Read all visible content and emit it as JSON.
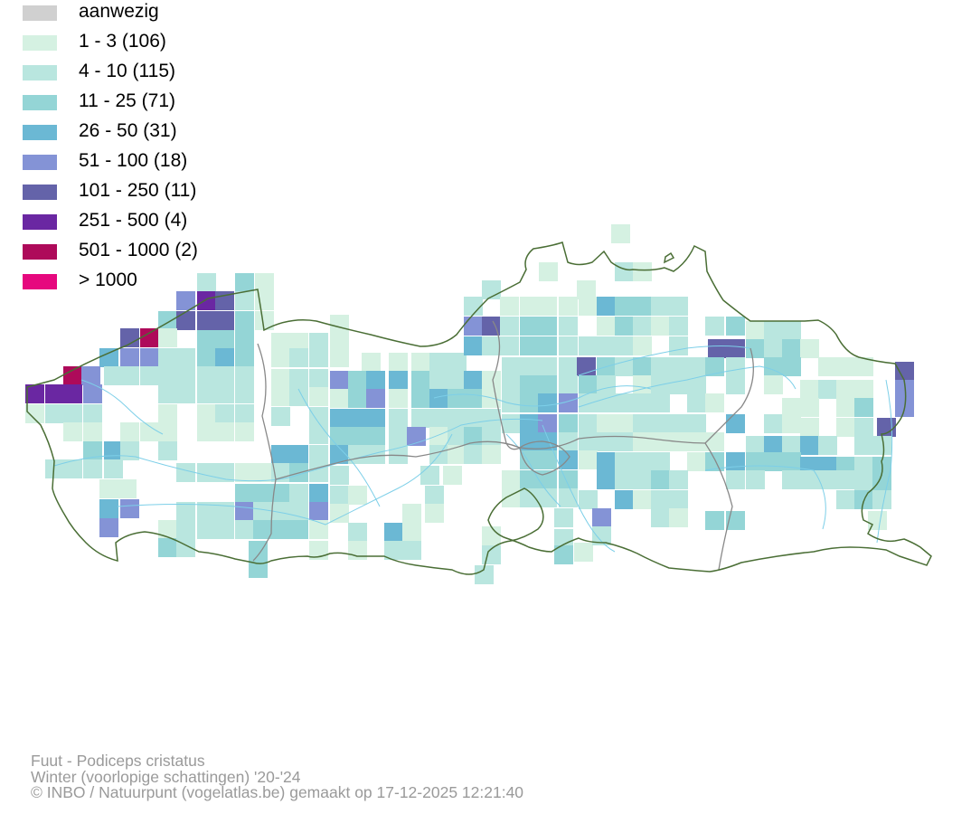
{
  "legend": {
    "items": [
      {
        "label": "aanwezig",
        "color": "#d0d0d0"
      },
      {
        "label": "1 - 3 (106)",
        "color": "#d5f1e2"
      },
      {
        "label": "4 - 10 (115)",
        "color": "#b9e6df"
      },
      {
        "label": "11 - 25 (71)",
        "color": "#94d5d6"
      },
      {
        "label": "26 - 50 (31)",
        "color": "#6bb8d4"
      },
      {
        "label": "51 - 100 (18)",
        "color": "#8493d6"
      },
      {
        "label": "101 - 250 (11)",
        "color": "#6463a9"
      },
      {
        "label": "251 - 500 (4)",
        "color": "#6a27a2"
      },
      {
        "label": "501 - 1000 (2)",
        "color": "#ae0a5a"
      },
      {
        "label": "> 1000",
        "color": "#e6087e"
      }
    ]
  },
  "caption": {
    "species": "Fuut - Podiceps cristatus",
    "season": "Winter (voorlopige schattingen) '20-'24",
    "credit": "© INBO / Natuurpunt (vogelatlas.be) gemaakt op 17-12-2025 12:21:40"
  },
  "map": {
    "border_color": "#4a6e35",
    "province_border_color": "#888888",
    "river_color": "#7dcfe8"
  }
}
